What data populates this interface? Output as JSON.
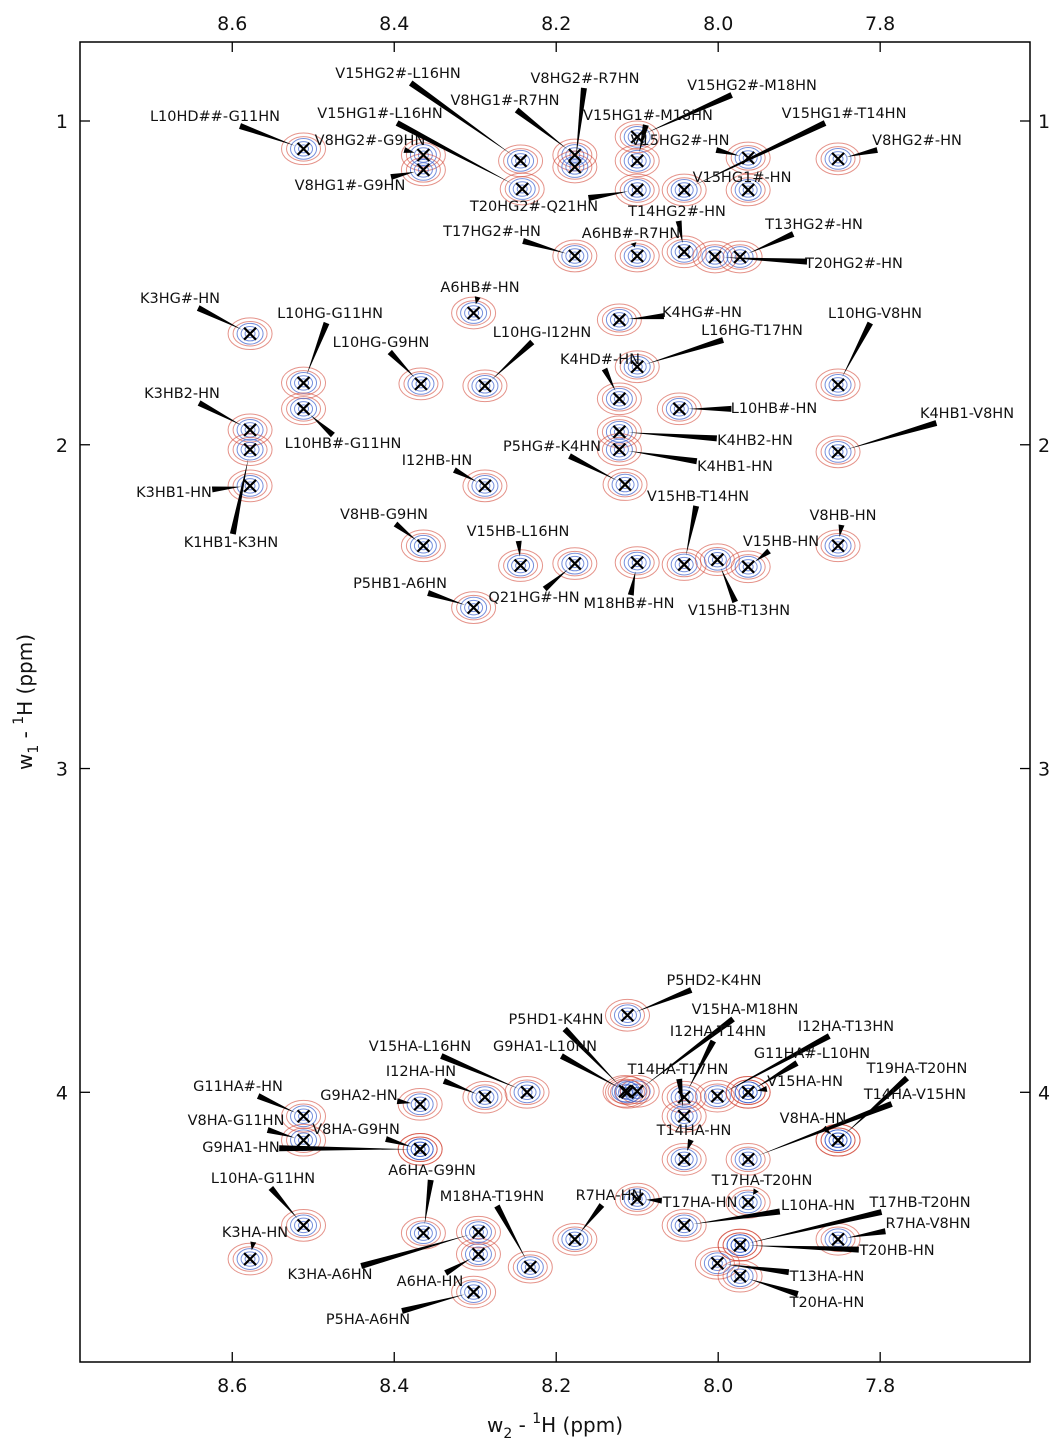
{
  "chart_data": {
    "type": "scatter",
    "x_label_parts": [
      "w",
      "2",
      " - ",
      "1",
      "H (ppm)"
    ],
    "y_label_parts": [
      "w",
      "1",
      " - ",
      "1",
      "H (ppm)"
    ],
    "xlim": [
      8.788,
      7.615
    ],
    "ylim": [
      0.756,
      4.833
    ],
    "xticks": [
      8.6,
      8.4,
      8.2,
      {
        "value": 8.0,
        "label": "8.0"
      },
      7.8
    ],
    "yticks": [
      1,
      2,
      3,
      4
    ],
    "marker_color": "#000000",
    "contour_colors": [
      "#3a5fcd",
      "#d03a2a"
    ],
    "point_labels": [
      "L10HD##-G11HN",
      "V8HG2#-G9HN",
      "V8HG1#-G9HN",
      "V15HG2#-L16HN",
      "V8HG1#-R7HN",
      "V8HG2#-R7HN",
      "V15HG1#-L16HN",
      "V15HG2#-M18HN",
      "V15HG1#-M18HN",
      "V15HG1#-T14HN",
      "V15HG2#-HN",
      "V15HG1#-HN",
      "V8HG2#-HN",
      "T20HG2#-Q21HN",
      "T14HG2#-HN",
      "T13HG2#-HN",
      "T17HG2#-HN",
      "A6HB#-R7HN",
      "T20HG2#-HN",
      "K3HG#-HN",
      "L10HG-G11HN",
      "A6HB#-HN",
      "K4HG#-HN",
      "L10HG-V8HN",
      "L10HG-I12HN",
      "L16HG-T17HN",
      "L10HG-G9HN",
      "K4HD#-HN",
      "K3HB2-HN",
      "L10HB#-HN",
      "L10HB#-G11HN",
      "K4HB2-HN",
      "K4HB1-V8HN",
      "P5HG#-K4HN",
      "K4HB1-HN",
      "I12HB-HN",
      "K3HB1-HN",
      "V15HB-T14HN",
      "K1HB1-K3HN",
      "V8HB-G9HN",
      "V15HB-L16HN",
      "V8HB-HN",
      "V15HB-HN",
      "P5HB1-A6HN",
      "Q21HG#-HN",
      "M18HB#-HN",
      "V15HB-T13HN",
      "P5HD2-K4HN",
      "P5HD1-K4HN",
      "V15HA-M18HN",
      "I12HA-T14HN",
      "I12HA-T13HN",
      "V15HA-L16HN",
      "G9HA1-L10HN",
      "T14HA-T17HN",
      "G11HA#-L10HN",
      "I12HA-HN",
      "T19HA-T20HN",
      "G11HA#-HN",
      "G9HA2-HN",
      "V15HA-HN",
      "T14HA-V15HN",
      "V8HA-G11HN",
      "V8HA-G9HN",
      "V8HA-HN",
      "T14HA-HN",
      "G9HA1-HN",
      "A6HA-G9HN",
      "L10HA-G11HN",
      "T17HA-T20HN",
      "M18HA-T19HN",
      "R7HA-HN",
      "T17HA-HN",
      "L10HA-HN",
      "T17HB-T20HN",
      "K3HA-HN",
      "R7HA-V8HN",
      "A6HA-HN",
      "K3HA-A6HN",
      "T20HB-HN",
      "T13HA-HN",
      "T20HA-HN",
      "P5HA-A6HN"
    ],
    "x": [
      8.512,
      8.364,
      8.364,
      8.244,
      8.177,
      8.177,
      8.242,
      8.1,
      8.1,
      8.042,
      7.963,
      7.963,
      7.852,
      8.1,
      8.042,
      7.973,
      8.177,
      8.1,
      8.004,
      8.578,
      8.512,
      8.302,
      8.122,
      7.852,
      8.288,
      8.1,
      8.367,
      8.122,
      8.578,
      8.048,
      8.512,
      8.122,
      7.852,
      8.115,
      8.122,
      8.288,
      8.578,
      8.042,
      8.578,
      8.364,
      8.244,
      7.852,
      7.963,
      8.302,
      8.177,
      8.1,
      8.001,
      8.112,
      8.115,
      8.1,
      8.042,
      8.001,
      8.236,
      8.112,
      8.042,
      7.963,
      8.288,
      7.852,
      8.512,
      8.368,
      7.963,
      7.963,
      8.512,
      8.368,
      7.852,
      8.042,
      8.368,
      8.364,
      8.512,
      7.963,
      8.232,
      8.177,
      8.1,
      8.042,
      7.973,
      8.578,
      7.852,
      8.296,
      8.296,
      7.973,
      8.001,
      7.973,
      8.302
    ],
    "values": [
      1.086,
      1.105,
      1.151,
      1.123,
      1.105,
      1.142,
      1.21,
      1.049,
      1.123,
      1.213,
      1.114,
      1.213,
      1.117,
      1.213,
      1.404,
      1.42,
      1.417,
      1.417,
      1.42,
      1.657,
      1.809,
      1.593,
      1.614,
      1.815,
      1.818,
      1.759,
      1.812,
      1.858,
      1.954,
      1.889,
      1.889,
      1.96,
      2.022,
      2.123,
      2.015,
      2.127,
      2.127,
      2.37,
      2.015,
      2.312,
      2.373,
      2.312,
      2.377,
      2.503,
      2.367,
      2.364,
      2.355,
      3.762,
      3.997,
      3.997,
      4.015,
      4.012,
      4.0,
      4.0,
      4.074,
      4.0,
      4.015,
      4.148,
      4.074,
      4.037,
      4.0,
      4.207,
      4.148,
      4.176,
      4.148,
      4.207,
      4.176,
      4.435,
      4.411,
      4.34,
      4.54,
      4.454,
      4.33,
      4.411,
      4.472,
      4.515,
      4.454,
      4.5,
      4.432,
      4.472,
      4.528,
      4.568,
      4.617
    ]
  }
}
